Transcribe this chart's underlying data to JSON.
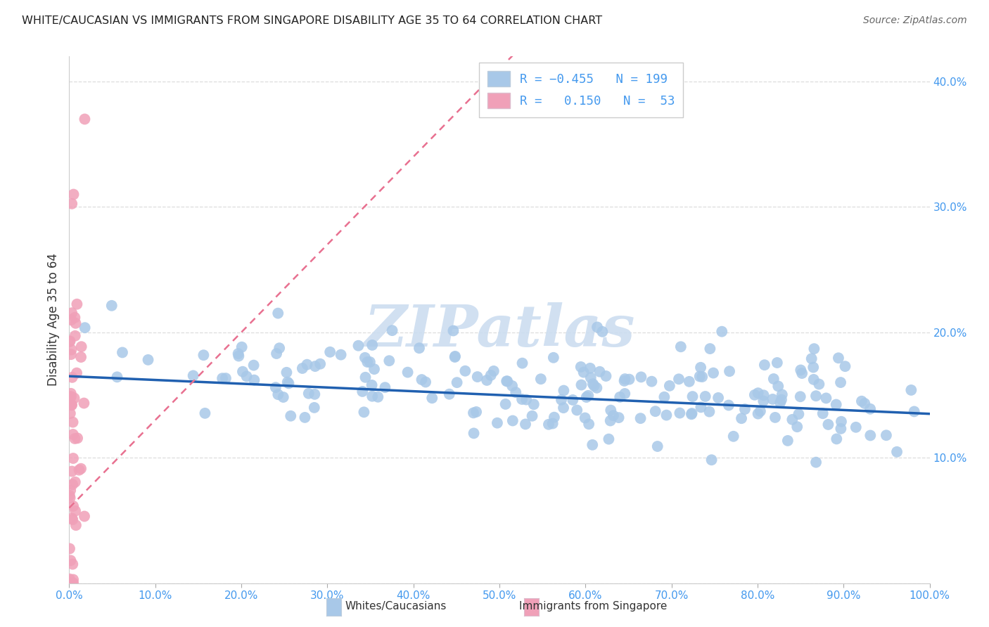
{
  "title": "WHITE/CAUCASIAN VS IMMIGRANTS FROM SINGAPORE DISABILITY AGE 35 TO 64 CORRELATION CHART",
  "source": "Source: ZipAtlas.com",
  "ylabel": "Disability Age 35 to 64",
  "xlim": [
    0,
    1
  ],
  "ylim": [
    0,
    0.42
  ],
  "xticks": [
    0.0,
    0.1,
    0.2,
    0.3,
    0.4,
    0.5,
    0.6,
    0.7,
    0.8,
    0.9,
    1.0
  ],
  "xticklabels": [
    "0.0%",
    "10.0%",
    "20.0%",
    "30.0%",
    "40.0%",
    "50.0%",
    "60.0%",
    "70.0%",
    "80.0%",
    "90.0%",
    "100.0%"
  ],
  "yticks": [
    0.0,
    0.1,
    0.2,
    0.3,
    0.4
  ],
  "right_yticklabels": [
    "",
    "10.0%",
    "20.0%",
    "30.0%",
    "40.0%"
  ],
  "blue_R": -0.455,
  "blue_N": 199,
  "pink_R": 0.15,
  "pink_N": 53,
  "blue_color": "#a8c8e8",
  "pink_color": "#f0a0b8",
  "blue_line_color": "#2060b0",
  "pink_line_color": "#e87090",
  "pink_line_dashed_color": "#f0a0b8",
  "watermark_color": "#ccddf0",
  "tick_color": "#4499ee",
  "label_color": "#333333",
  "grid_color": "#dddddd",
  "seed_blue": 12,
  "seed_pink": 99
}
